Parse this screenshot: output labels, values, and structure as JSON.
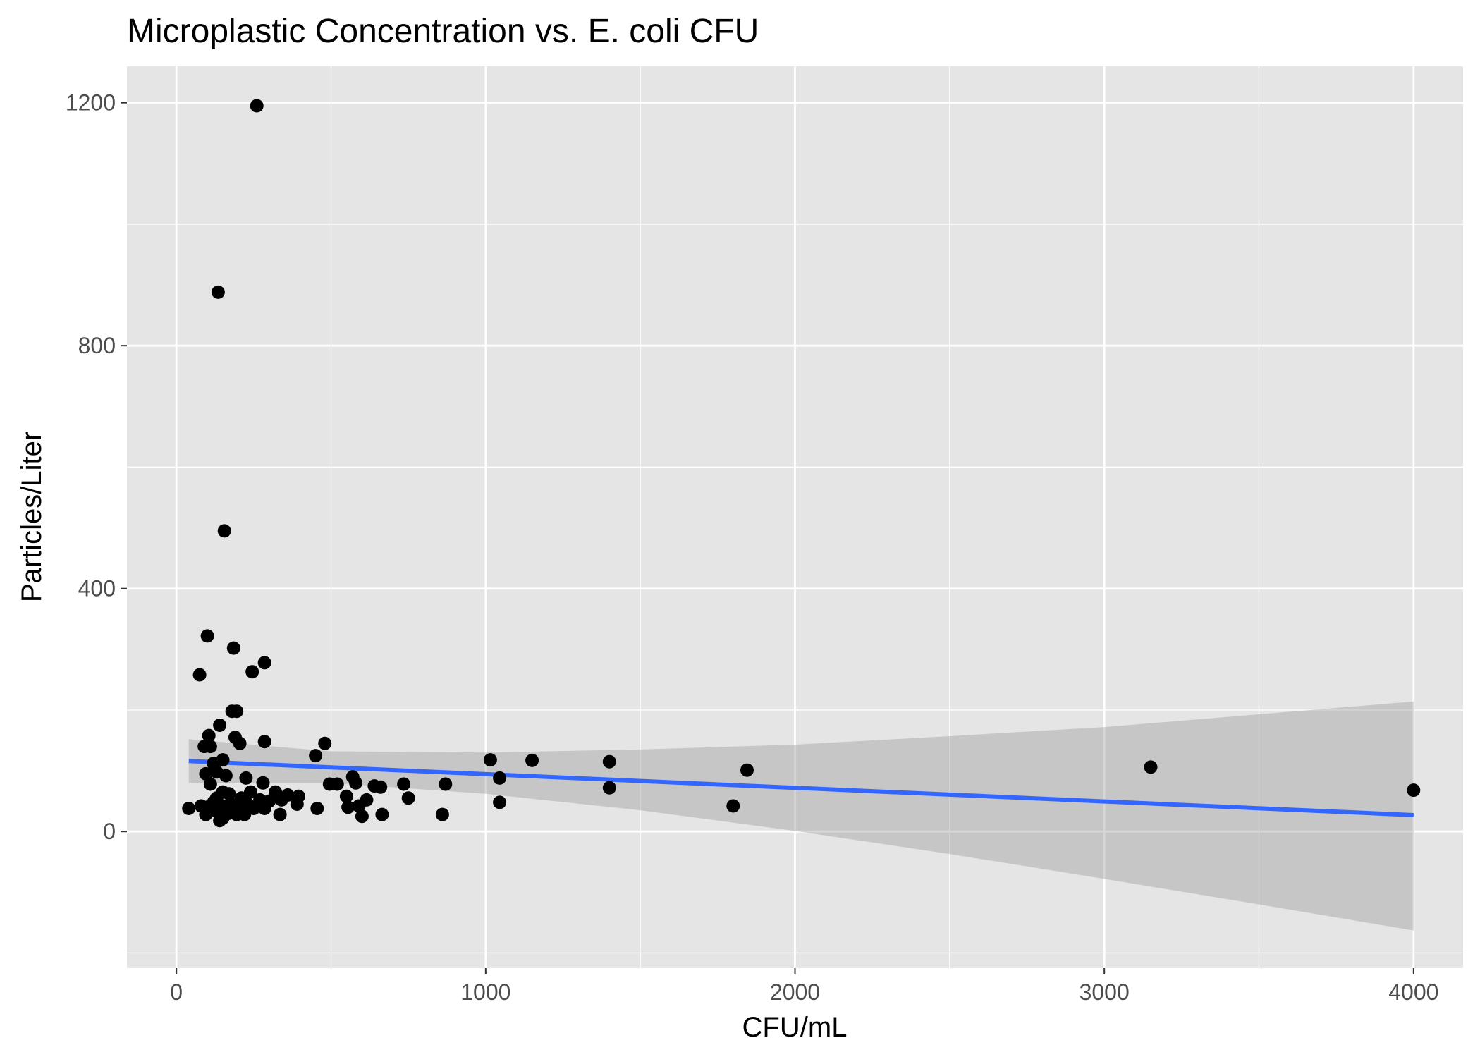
{
  "chart_data": {
    "type": "scatter",
    "title": "Microplastic Concentration vs. E. coli CFU",
    "xlabel": "CFU/mL",
    "ylabel": "Particles/Liter",
    "xlim": [
      -160,
      4160
    ],
    "ylim": [
      -225,
      1260
    ],
    "x_ticks": [
      0,
      1000,
      2000,
      3000,
      4000
    ],
    "x_tick_labels": [
      "0",
      "1000",
      "2000",
      "3000",
      "4000"
    ],
    "y_ticks": [
      0,
      400,
      800,
      1200
    ],
    "y_tick_labels": [
      "0",
      "400",
      "800",
      "1200"
    ],
    "x_minor_ticks": [
      500,
      1500,
      2500,
      3500
    ],
    "y_minor_ticks": [
      -200,
      200,
      600,
      1000
    ],
    "grid": true,
    "legend": "none",
    "panel_color": "#e5e5e5",
    "point_color": "#000000",
    "smooth_color": "#3366ff",
    "ribbon_color": "#bebebe",
    "points": [
      [
        260,
        1195
      ],
      [
        135,
        888
      ],
      [
        155,
        495
      ],
      [
        100,
        322
      ],
      [
        185,
        302
      ],
      [
        285,
        278
      ],
      [
        75,
        258
      ],
      [
        245,
        263
      ],
      [
        180,
        198
      ],
      [
        195,
        198
      ],
      [
        140,
        175
      ],
      [
        105,
        158
      ],
      [
        190,
        155
      ],
      [
        205,
        145
      ],
      [
        285,
        148
      ],
      [
        480,
        145
      ],
      [
        90,
        140
      ],
      [
        110,
        140
      ],
      [
        450,
        125
      ],
      [
        1015,
        118
      ],
      [
        1150,
        117
      ],
      [
        1400,
        115
      ],
      [
        150,
        118
      ],
      [
        120,
        112
      ],
      [
        3150,
        106
      ],
      [
        1845,
        101
      ],
      [
        95,
        95
      ],
      [
        130,
        98
      ],
      [
        160,
        92
      ],
      [
        570,
        90
      ],
      [
        1045,
        88
      ],
      [
        225,
        88
      ],
      [
        110,
        78
      ],
      [
        280,
        80
      ],
      [
        495,
        78
      ],
      [
        520,
        78
      ],
      [
        580,
        80
      ],
      [
        640,
        75
      ],
      [
        660,
        73
      ],
      [
        735,
        78
      ],
      [
        870,
        78
      ],
      [
        1400,
        72
      ],
      [
        4000,
        68
      ],
      [
        150,
        65
      ],
      [
        170,
        62
      ],
      [
        240,
        65
      ],
      [
        320,
        65
      ],
      [
        360,
        60
      ],
      [
        395,
        58
      ],
      [
        550,
        58
      ],
      [
        130,
        55
      ],
      [
        210,
        55
      ],
      [
        270,
        52
      ],
      [
        300,
        50
      ],
      [
        340,
        52
      ],
      [
        615,
        52
      ],
      [
        750,
        55
      ],
      [
        1045,
        48
      ],
      [
        120,
        48
      ],
      [
        180,
        45
      ],
      [
        230,
        45
      ],
      [
        390,
        45
      ],
      [
        80,
        42
      ],
      [
        100,
        40
      ],
      [
        150,
        42
      ],
      [
        210,
        40
      ],
      [
        285,
        38
      ],
      [
        455,
        38
      ],
      [
        555,
        40
      ],
      [
        590,
        42
      ],
      [
        1800,
        42
      ],
      [
        40,
        38
      ],
      [
        125,
        35
      ],
      [
        160,
        38
      ],
      [
        200,
        32
      ],
      [
        250,
        38
      ],
      [
        195,
        28
      ],
      [
        95,
        28
      ],
      [
        220,
        28
      ],
      [
        335,
        28
      ],
      [
        600,
        25
      ],
      [
        665,
        28
      ],
      [
        860,
        28
      ],
      [
        150,
        22
      ],
      [
        140,
        18
      ],
      [
        170,
        30
      ]
    ],
    "smooth_line": [
      [
        40,
        116
      ],
      [
        4000,
        27
      ]
    ],
    "confidence_band": {
      "x": [
        40,
        500,
        1000,
        1500,
        2000,
        2500,
        3000,
        3500,
        4000
      ],
      "upper": [
        152,
        132,
        130,
        135,
        143,
        157,
        172,
        193,
        214
      ],
      "lower": [
        80,
        80,
        62,
        35,
        1,
        -37,
        -78,
        -120,
        -163
      ]
    }
  }
}
